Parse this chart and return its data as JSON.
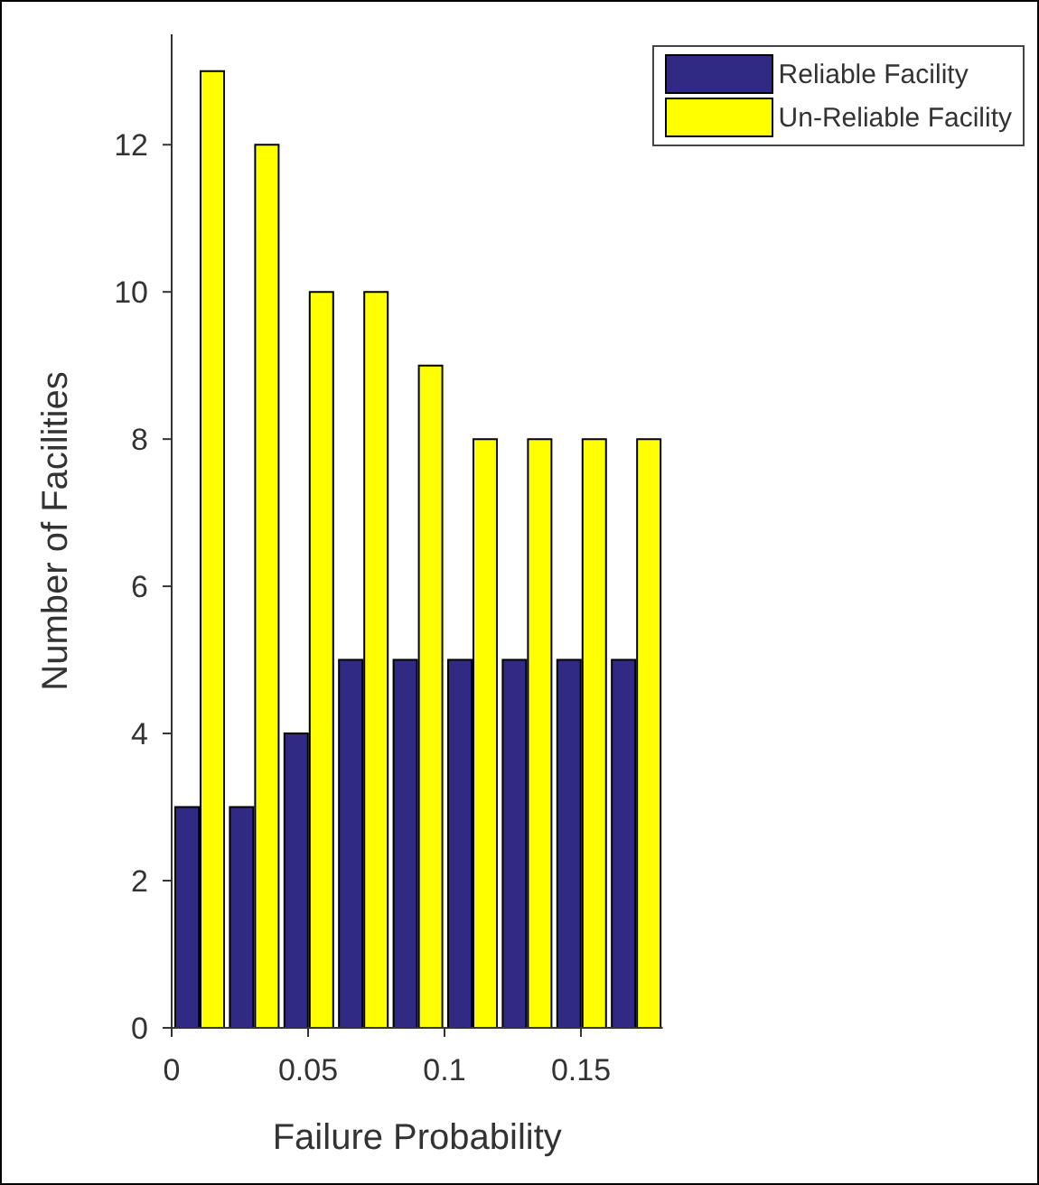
{
  "chart_data": {
    "type": "bar",
    "xlabel": "Failure Probability",
    "ylabel": "Number of Facilities",
    "x": [
      0.01,
      0.03,
      0.05,
      0.07,
      0.09,
      0.11,
      0.13,
      0.15,
      0.17
    ],
    "series": [
      {
        "name": "Reliable Facility",
        "color": "#312a84",
        "values": [
          3,
          3,
          4,
          5,
          5,
          5,
          5,
          5,
          5
        ]
      },
      {
        "name": "Un-Reliable Facility",
        "color": "#ffff00",
        "values": [
          13,
          12,
          10,
          10,
          9,
          8,
          8,
          8,
          8
        ]
      }
    ],
    "xlim": [
      0,
      0.18
    ],
    "xticks": [
      0,
      0.05,
      0.1,
      0.15
    ],
    "ylim": [
      0,
      13.5
    ],
    "yticks": [
      0,
      2,
      4,
      6,
      8,
      10,
      12
    ],
    "grid": false,
    "legend": "top right"
  }
}
